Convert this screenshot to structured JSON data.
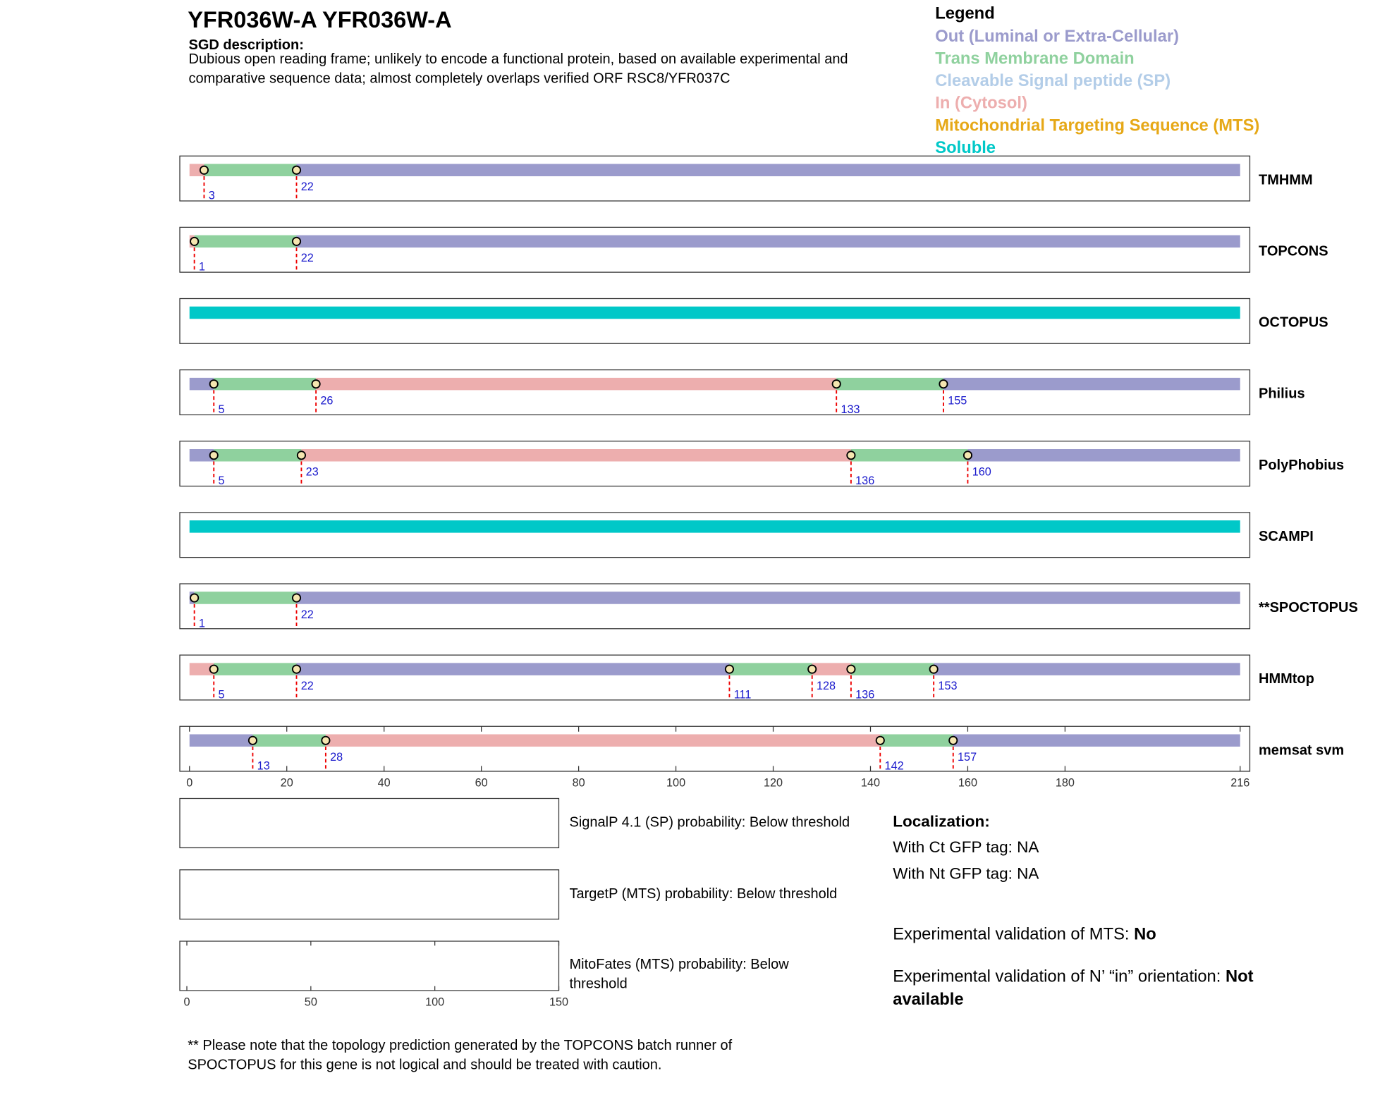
{
  "header": {
    "title": "YFR036W-A  YFR036W-A",
    "description_label": "SGD description:",
    "description_lines": [
      "Dubious open reading frame; unlikely to encode a functional protein, based on available experimental and",
      "comparative sequence data; almost completely overlaps verified ORF RSC8/YFR037C"
    ]
  },
  "legend": {
    "title": "Legend",
    "items": [
      {
        "name": "Out (Luminal or Extra-Cellular)",
        "color": "#9b9bcc"
      },
      {
        "name": "Trans Membrane Domain",
        "color": "#8fd19e"
      },
      {
        "name": "Cleavable Signal peptide (SP)",
        "color": "#b3cde8"
      },
      {
        "name": "In (Cytosol)",
        "color": "#edaeae"
      },
      {
        "name": "Mitochondrial Targeting Sequence (MTS)",
        "color": "#e6a817"
      },
      {
        "name": "Soluble",
        "color": "#00c8c8"
      }
    ]
  },
  "chart_data": {
    "type": "topology",
    "xlim": [
      0,
      216
    ],
    "xticks": [
      0,
      20,
      40,
      60,
      80,
      100,
      120,
      140,
      160,
      180,
      216
    ],
    "tracks": [
      {
        "name": "TMHMM",
        "boundaries": [
          3,
          22
        ],
        "colors": [
          "#edaeae",
          "#8fd19e",
          "#9b9bcc"
        ]
      },
      {
        "name": "TOPCONS",
        "boundaries": [
          1,
          22
        ],
        "colors": [
          "#edaeae",
          "#8fd19e",
          "#9b9bcc"
        ]
      },
      {
        "name": "OCTOPUS",
        "boundaries": [],
        "colors": [
          "#00c8c8"
        ]
      },
      {
        "name": "Philius",
        "boundaries": [
          5,
          26,
          133,
          155
        ],
        "colors": [
          "#9b9bcc",
          "#8fd19e",
          "#edaeae",
          "#8fd19e",
          "#9b9bcc"
        ]
      },
      {
        "name": "PolyPhobius",
        "boundaries": [
          5,
          23,
          136,
          160
        ],
        "colors": [
          "#9b9bcc",
          "#8fd19e",
          "#edaeae",
          "#8fd19e",
          "#9b9bcc"
        ]
      },
      {
        "name": "SCAMPI",
        "boundaries": [],
        "colors": [
          "#00c8c8"
        ]
      },
      {
        "name": "**SPOCTOPUS",
        "boundaries": [
          1,
          22
        ],
        "colors": [
          "#9b9bcc",
          "#8fd19e",
          "#9b9bcc"
        ]
      },
      {
        "name": "HMMtop",
        "boundaries": [
          5,
          22,
          111,
          128,
          136,
          153
        ],
        "colors": [
          "#edaeae",
          "#8fd19e",
          "#9b9bcc",
          "#8fd19e",
          "#edaeae",
          "#8fd19e",
          "#9b9bcc"
        ]
      },
      {
        "name": "memsat svm",
        "boundaries": [
          13,
          28,
          142,
          157
        ],
        "colors": [
          "#9b9bcc",
          "#8fd19e",
          "#edaeae",
          "#8fd19e",
          "#9b9bcc"
        ]
      }
    ]
  },
  "probability": {
    "xlim": [
      0,
      150
    ],
    "xticks": [
      0,
      50,
      100,
      150
    ],
    "panels": [
      {
        "label_lines": [
          "SignalP 4.1 (SP) probability: Below threshold"
        ]
      },
      {
        "label_lines": [
          "TargetP (MTS) probability: Below threshold"
        ]
      },
      {
        "label_lines": [
          "MitoFates (MTS) probability: Below",
          "threshold"
        ]
      }
    ]
  },
  "localization": {
    "title": "Localization:",
    "ct": "With Ct GFP tag: NA",
    "nt": "With Nt GFP tag: NA"
  },
  "validation": [
    {
      "label": "Experimental validation of MTS: ",
      "value_lines": [
        "No"
      ]
    },
    {
      "label": "Experimental validation of N’ “in” orientation: ",
      "value_lines": [
        "Not",
        "available"
      ]
    }
  ],
  "note_lines": [
    "** Please note that the topology prediction generated by the TOPCONS batch runner of",
    "SPOCTOPUS for this gene is not logical and should be treated with caution."
  ]
}
